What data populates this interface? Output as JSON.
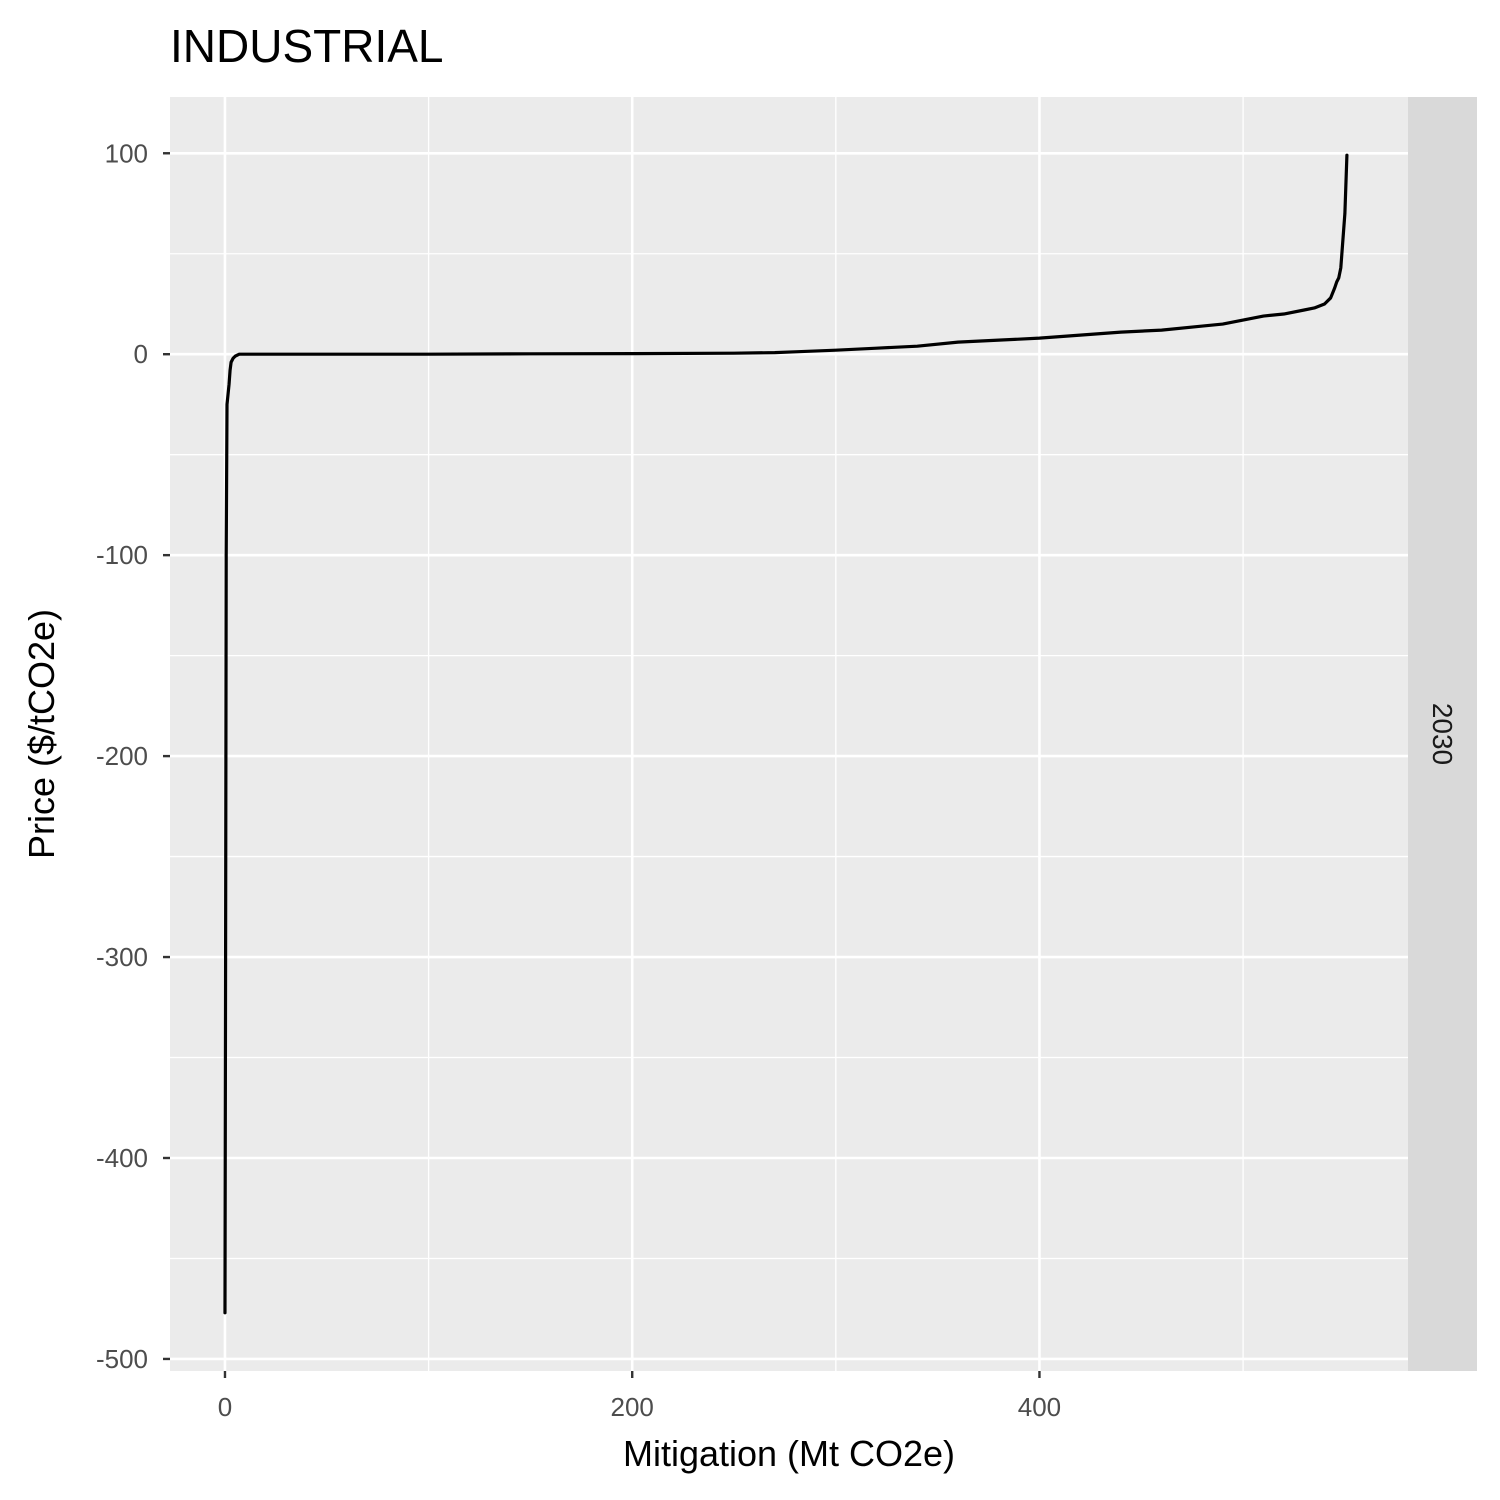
{
  "chart_data": {
    "type": "line",
    "title": "INDUSTRIAL",
    "xlabel": "Mitigation (Mt CO2e)",
    "ylabel": "Price ($/tCO2e)",
    "facet_label": "2030",
    "xlim": [
      -27,
      581
    ],
    "ylim": [
      -506,
      128
    ],
    "x_ticks": [
      0,
      200,
      400
    ],
    "x_tick_labels": [
      "0",
      "200",
      "400"
    ],
    "y_ticks": [
      100,
      0,
      -100,
      -200,
      -300,
      -400,
      -500
    ],
    "y_tick_labels": [
      "100",
      "0",
      "-100",
      "-200",
      "-300",
      "-400",
      "-500"
    ],
    "grid": true,
    "colors": {
      "panel_background": "#ebebeb",
      "grid": "#ffffff",
      "strip_background": "#d9d9d9",
      "line": "#000000"
    },
    "series": [
      {
        "x": [
          0,
          0.3,
          0.6,
          1,
          1.5,
          2,
          2.5,
          3,
          4,
          5,
          6,
          7,
          8,
          10,
          20,
          50,
          100,
          150,
          200,
          250,
          270,
          280,
          300,
          320,
          340,
          360,
          380,
          400,
          420,
          440,
          460,
          480,
          490,
          500,
          510,
          520,
          530,
          535,
          540,
          543,
          545,
          546,
          547,
          548,
          550,
          551
        ],
        "y": [
          -477,
          -300,
          -100,
          -25,
          -20,
          -15,
          -8,
          -4,
          -2,
          -1,
          -0.5,
          0,
          0,
          0,
          0,
          0,
          0,
          0.2,
          0.3,
          0.5,
          0.8,
          1.2,
          2,
          3,
          4,
          6,
          7,
          8,
          9.5,
          11,
          12,
          14,
          15,
          17,
          19,
          20,
          22,
          23,
          25,
          28,
          33,
          36,
          38,
          43,
          70,
          99
        ]
      }
    ]
  }
}
